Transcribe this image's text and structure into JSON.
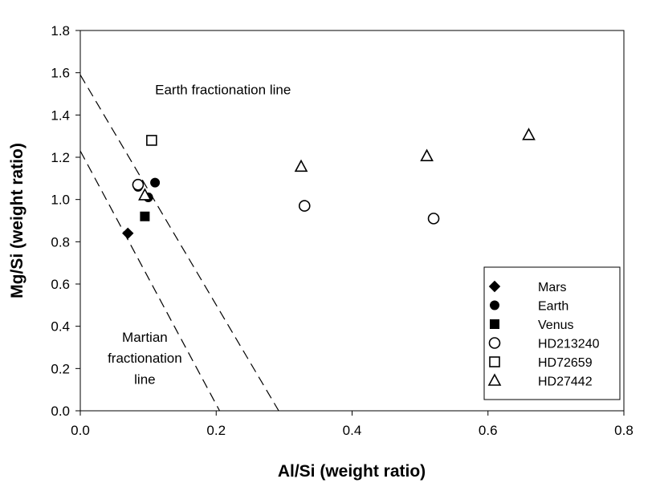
{
  "chart_data": {
    "type": "scatter",
    "title": "",
    "xlabel": "Al/Si (weight ratio)",
    "ylabel": "Mg/Si (weight ratio)",
    "xlim": [
      0.0,
      0.8
    ],
    "ylim": [
      0.0,
      1.8
    ],
    "xticks": [
      "0.0",
      "0.2",
      "0.4",
      "0.6",
      "0.8"
    ],
    "yticks": [
      "0.0",
      "0.2",
      "0.4",
      "0.6",
      "0.8",
      "1.0",
      "1.2",
      "1.4",
      "1.6",
      "1.8"
    ],
    "legend_position": "bottom-right",
    "grid": false,
    "series": [
      {
        "name": "Mars",
        "marker": "diamond-filled",
        "points": [
          [
            0.07,
            0.84
          ]
        ]
      },
      {
        "name": "Earth",
        "marker": "circle-filled",
        "points": [
          [
            0.11,
            1.08
          ],
          [
            0.1,
            1.01
          ],
          [
            0.085,
            1.06
          ]
        ]
      },
      {
        "name": "Venus",
        "marker": "square-filled",
        "points": [
          [
            0.095,
            0.92
          ]
        ]
      },
      {
        "name": "HD213240",
        "marker": "circle-open",
        "points": [
          [
            0.085,
            1.07
          ],
          [
            0.33,
            0.97
          ],
          [
            0.52,
            0.91
          ]
        ]
      },
      {
        "name": "HD72659",
        "marker": "square-open",
        "points": [
          [
            0.105,
            1.28
          ]
        ]
      },
      {
        "name": "HD27442",
        "marker": "triangle-open",
        "points": [
          [
            0.095,
            1.02
          ],
          [
            0.325,
            1.155
          ],
          [
            0.51,
            1.205
          ],
          [
            0.66,
            1.305
          ]
        ]
      }
    ],
    "lines": [
      {
        "name": "Earth fractionation line",
        "style": "dashed",
        "points": [
          [
            0.0,
            1.59
          ],
          [
            0.292,
            0.0
          ]
        ]
      },
      {
        "name": "Martian fractionation line",
        "style": "dashed",
        "points": [
          [
            0.0,
            1.23
          ],
          [
            0.205,
            0.0
          ]
        ]
      }
    ],
    "annotations": [
      {
        "text": "Earth fractionation line",
        "at": [
          0.21,
          1.52
        ]
      },
      {
        "text": "Martian",
        "at": [
          0.095,
          0.35
        ]
      },
      {
        "text": "fractionation",
        "at": [
          0.095,
          0.25
        ]
      },
      {
        "text": "line",
        "at": [
          0.095,
          0.15
        ]
      }
    ]
  }
}
